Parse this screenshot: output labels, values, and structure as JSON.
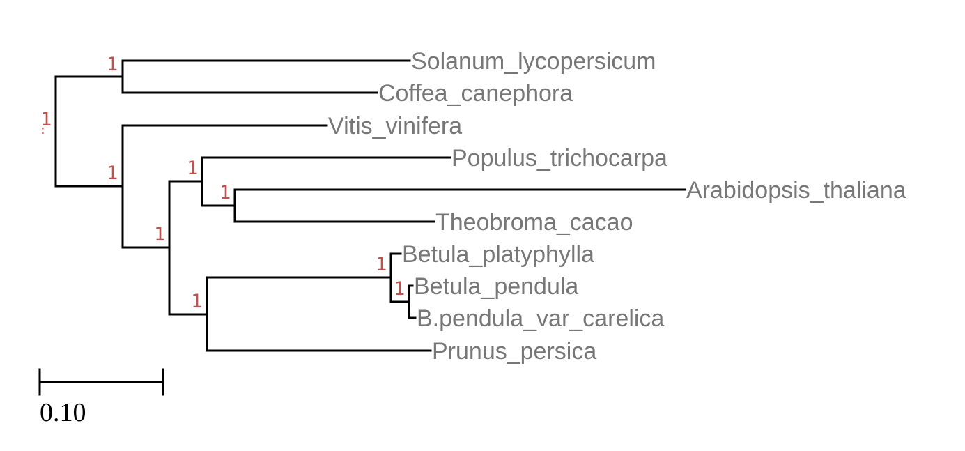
{
  "tree": {
    "leaves": [
      {
        "id": "solanum",
        "label": "Solanum_lycopersicum"
      },
      {
        "id": "coffea",
        "label": "Coffea_canephora"
      },
      {
        "id": "vitis",
        "label": "Vitis_vinifera"
      },
      {
        "id": "populus",
        "label": "Populus_trichocarpa"
      },
      {
        "id": "arabidopsis",
        "label": "Arabidopsis_thaliana"
      },
      {
        "id": "theobroma",
        "label": "Theobroma_cacao"
      },
      {
        "id": "betula-platyphylla",
        "label": "Betula_platyphylla"
      },
      {
        "id": "betula-pendula",
        "label": "Betula_pendula"
      },
      {
        "id": "b-pendula-carelica",
        "label": "B.pendula_var_carelica"
      },
      {
        "id": "prunus",
        "label": "Prunus_persica"
      }
    ],
    "support": {
      "root": "1",
      "solanum_coffea": "1",
      "rest": "1",
      "rosids": "1",
      "populus_group": "1",
      "arabidopsis_theobroma": "1",
      "betula_prunus": "1",
      "betula": "1",
      "pendula": "1"
    },
    "scale_bar": {
      "label": "0.10",
      "length": 0.1
    }
  },
  "colors": {
    "branch": "#000000",
    "leaf_text": "#777777",
    "support_text": "#c0504d"
  }
}
